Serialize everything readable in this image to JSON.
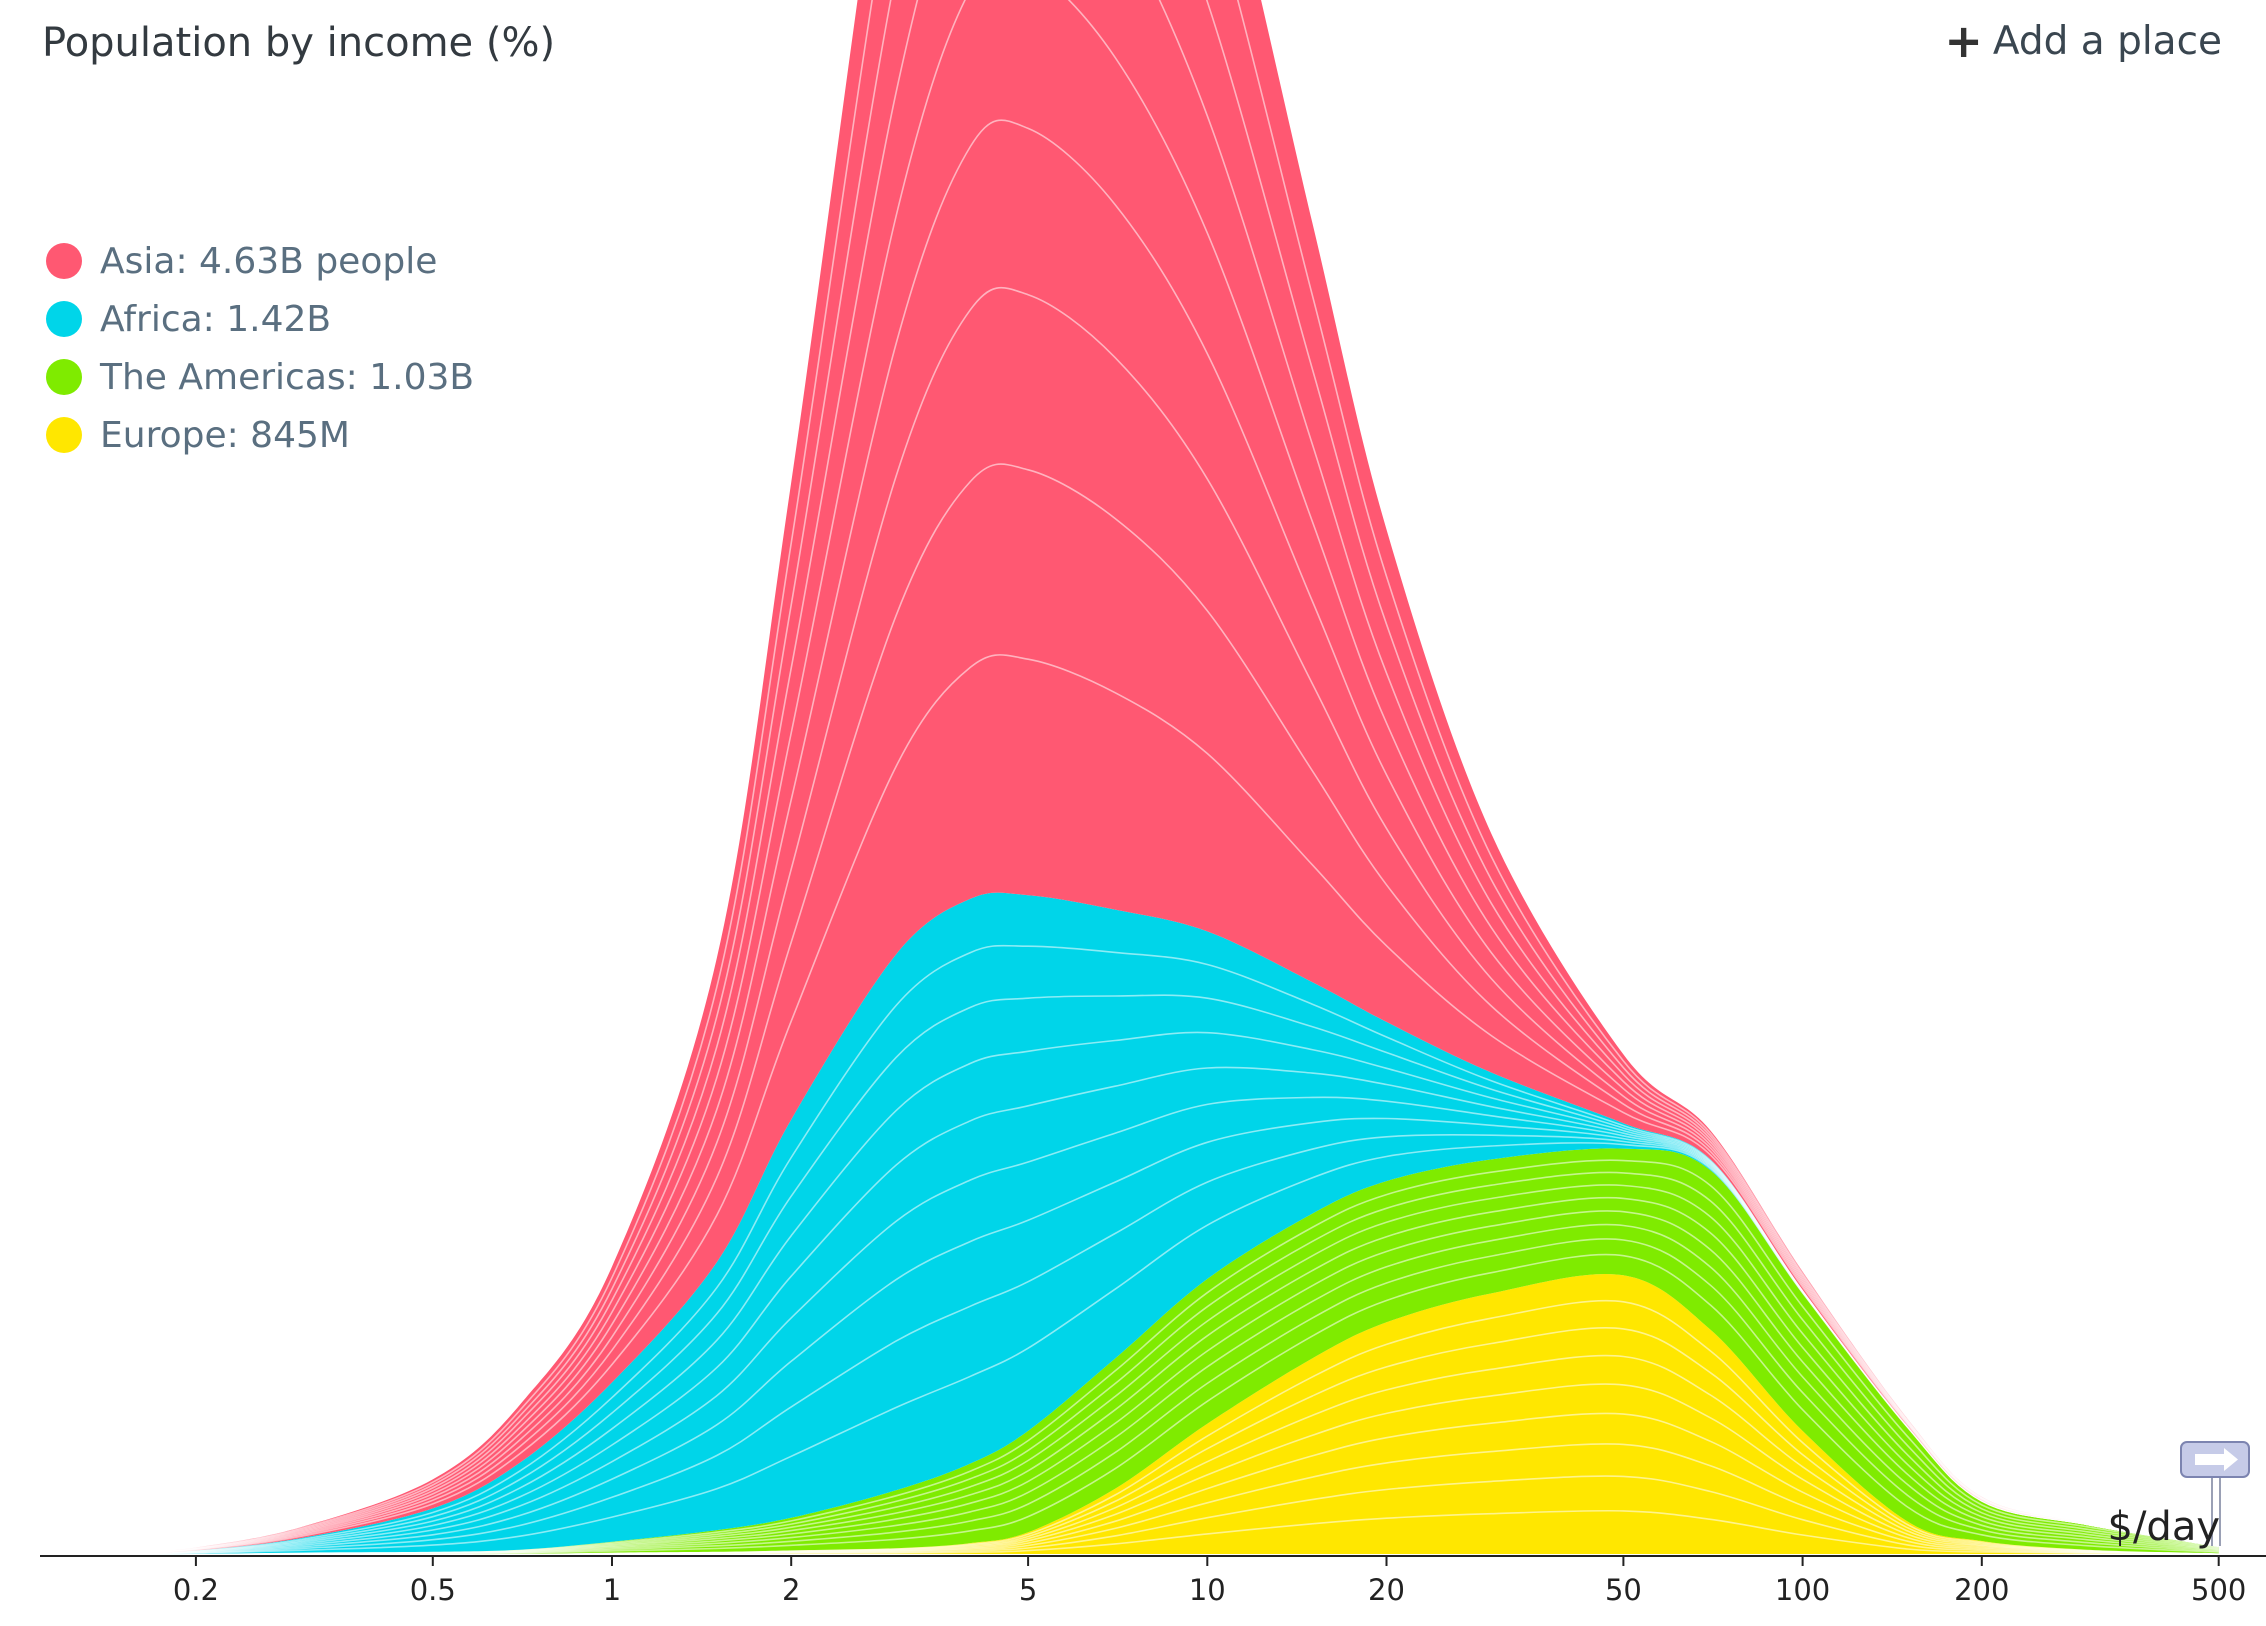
{
  "header": {
    "title": "Population by income (%)",
    "add_place_label": "Add a place",
    "add_place_icon": "plus-icon"
  },
  "legend": [
    {
      "label": "Asia: 4.63B people",
      "color": "#ff5872"
    },
    {
      "label": "Africa: 1.42B",
      "color": "#00d5e9"
    },
    {
      "label": "The Americas: 1.03B",
      "color": "#7feb00"
    },
    {
      "label": "Europe: 845M",
      "color": "#ffe700"
    }
  ],
  "chart_data": {
    "type": "area",
    "stacked": true,
    "title": "Population by income (%)",
    "xlabel": "$/day",
    "x_scale": "log",
    "xlim": [
      0.13,
      600
    ],
    "x_ticks": [
      "0.2",
      "0.5",
      "1",
      "2",
      "5",
      "10",
      "20",
      "50",
      "100",
      "200",
      "500"
    ],
    "x": [
      0.15,
      0.2,
      0.3,
      0.5,
      0.7,
      1,
      1.5,
      2,
      3,
      4,
      5,
      7,
      10,
      15,
      20,
      30,
      50,
      70,
      100,
      150,
      200,
      300,
      500
    ],
    "series": [
      {
        "name": "Europe",
        "color": "#ffe700",
        "values": [
          0,
          0,
          0,
          0.0,
          0.0,
          0.02,
          0.03,
          0.05,
          0.08,
          0.15,
          0.3,
          0.9,
          1.8,
          2.7,
          3.2,
          3.6,
          3.85,
          3.1,
          1.7,
          0.45,
          0.18,
          0.06,
          0.01
        ]
      },
      {
        "name": "The Americas",
        "color": "#7feb00",
        "values": [
          0,
          0,
          0.02,
          0.03,
          0.06,
          0.15,
          0.3,
          0.45,
          0.8,
          1.1,
          1.4,
          1.8,
          2.0,
          2.0,
          1.95,
          1.85,
          1.75,
          2.2,
          1.9,
          1.3,
          0.55,
          0.35,
          0.1
        ]
      },
      {
        "name": "Africa",
        "color": "#00d5e9",
        "values": [
          0,
          0.05,
          0.2,
          0.6,
          1.2,
          2.2,
          3.7,
          5.5,
          7.4,
          7.8,
          7.4,
          6.2,
          4.8,
          3.2,
          2.2,
          1.2,
          0.35,
          0.15,
          0.05,
          0.02,
          0.01,
          0,
          0
        ]
      },
      {
        "name": "Asia",
        "color": "#ff5872",
        "values": [
          0,
          0.04,
          0.15,
          0.4,
          0.8,
          1.6,
          4.2,
          8.8,
          16.8,
          20.7,
          21.1,
          19.4,
          15.9,
          10.5,
          6.8,
          3.3,
          0.95,
          0.4,
          0.25,
          0.1,
          0.05,
          0.02,
          0
        ]
      }
    ]
  }
}
